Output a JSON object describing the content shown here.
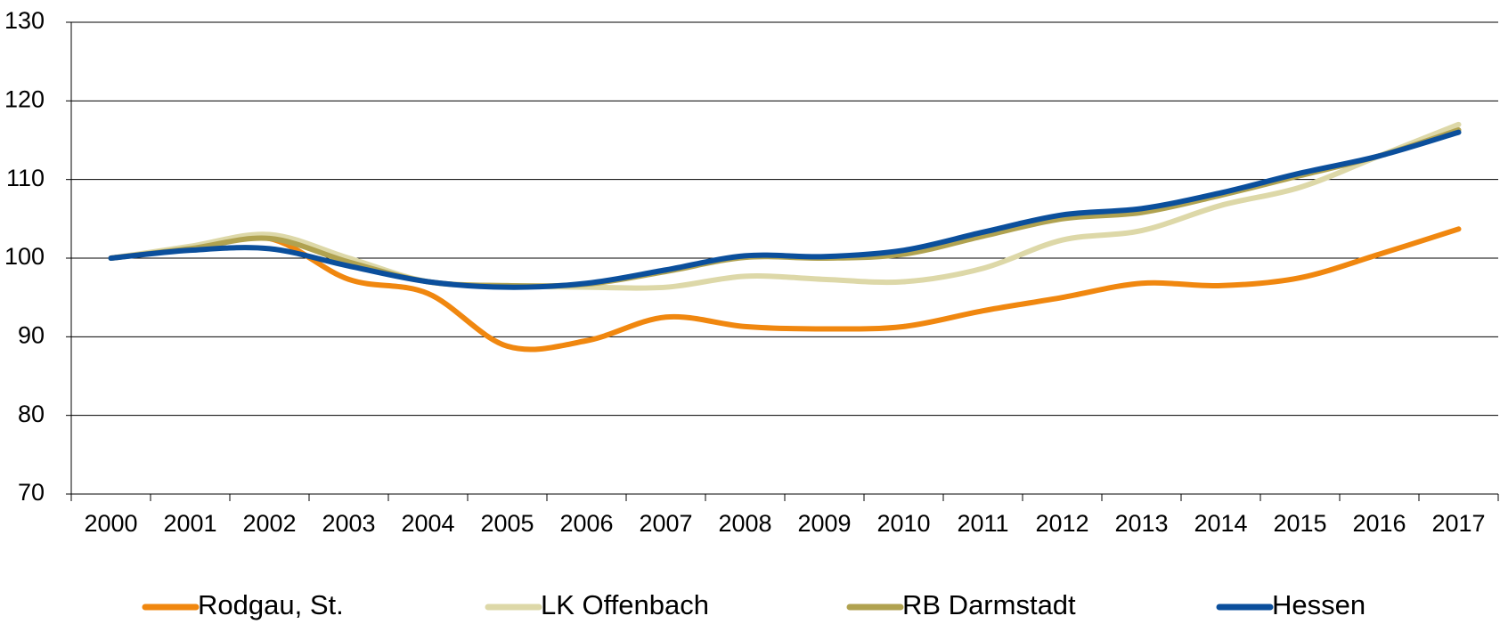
{
  "chart_data": {
    "type": "line",
    "categories": [
      "2000",
      "2001",
      "2002",
      "2003",
      "2004",
      "2005",
      "2006",
      "2007",
      "2008",
      "2009",
      "2010",
      "2011",
      "2012",
      "2013",
      "2014",
      "2015",
      "2016",
      "2017"
    ],
    "series": [
      {
        "name": "Rodgau, St.",
        "color": "#f0870f",
        "values": [
          100,
          101.3,
          102.5,
          97.3,
          95.5,
          88.8,
          89.5,
          92.5,
          91.3,
          91.0,
          91.3,
          93.3,
          95.0,
          96.8,
          96.5,
          97.5,
          100.5,
          103.7
        ]
      },
      {
        "name": "LK Offenbach",
        "color": "#ddd8a8",
        "values": [
          100,
          101.5,
          103,
          100,
          97,
          96.5,
          96.3,
          96.3,
          97.7,
          97.3,
          97,
          98.7,
          102.3,
          103.5,
          106.7,
          109,
          113,
          117
        ]
      },
      {
        "name": "RB Darmstadt",
        "color": "#b0a250",
        "values": [
          100,
          101.2,
          102.5,
          99.5,
          97,
          96.5,
          96.7,
          98.3,
          100.1,
          100,
          100.5,
          102.8,
          105,
          105.8,
          108,
          110.5,
          113,
          116.3
        ]
      },
      {
        "name": "Hessen",
        "color": "#0b4f9c",
        "values": [
          100,
          101,
          101.2,
          99,
          97,
          96.3,
          96.8,
          98.5,
          100.3,
          100.2,
          101,
          103.3,
          105.5,
          106.3,
          108.3,
          110.8,
          113,
          116
        ]
      }
    ],
    "ylim": [
      70,
      130
    ],
    "yticks": [
      70,
      80,
      90,
      100,
      110,
      120,
      130
    ],
    "grid": true,
    "legend": "bottom"
  }
}
